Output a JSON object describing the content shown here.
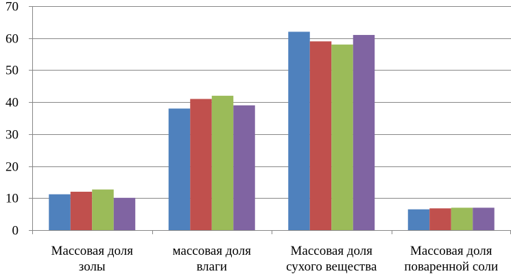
{
  "chart_data": {
    "type": "bar",
    "title": "",
    "xlabel": "",
    "ylabel": "",
    "ylim": [
      0,
      70
    ],
    "yticks": [
      0,
      10,
      20,
      30,
      40,
      50,
      60,
      70
    ],
    "grid": true,
    "legend": "none",
    "categories": [
      [
        "Массовая доля",
        "золы"
      ],
      [
        "массовая доля",
        "влаги"
      ],
      [
        "Массовая доля",
        "сухого вещества"
      ],
      [
        "Массовая доля",
        "поваренной соли"
      ]
    ],
    "series": [
      {
        "color": "#4F81BD",
        "values": [
          11.2,
          38,
          62,
          6.5
        ]
      },
      {
        "color": "#C0504D",
        "values": [
          12,
          41,
          59,
          6.8
        ]
      },
      {
        "color": "#9BBB59",
        "values": [
          12.7,
          42,
          58,
          7
        ]
      },
      {
        "color": "#8064A2",
        "values": [
          10.1,
          39,
          61,
          7
        ]
      }
    ]
  }
}
